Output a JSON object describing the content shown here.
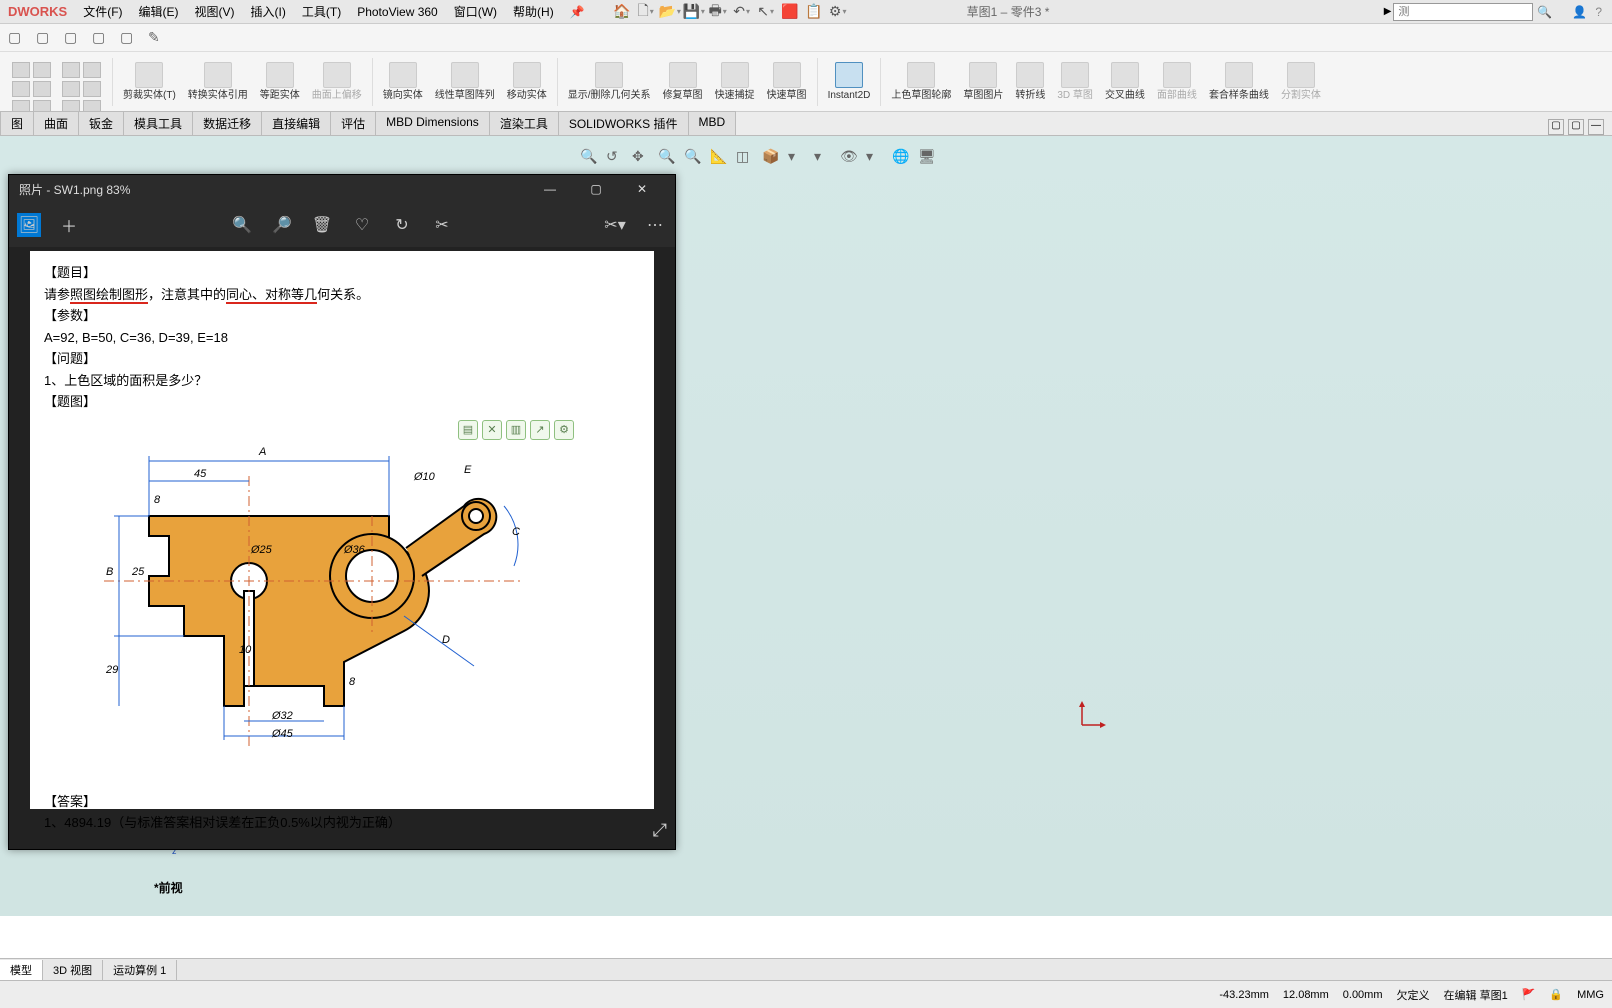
{
  "app": {
    "logo": "DWORKS"
  },
  "menu": [
    "文件(F)",
    "编辑(E)",
    "视图(V)",
    "插入(I)",
    "工具(T)",
    "PhotoView 360",
    "窗口(W)",
    "帮助(H)"
  ],
  "doc_title": "草图1 – 零件3 *",
  "search": {
    "icon": "▶",
    "placeholder": "测"
  },
  "ribbon": {
    "groups": [
      {
        "label": "剪裁实体(T)"
      },
      {
        "label": "转换实体引用"
      },
      {
        "label": "等距实体"
      },
      {
        "label": "曲面上偏移",
        "dim": true
      },
      {
        "label": "镜向实体"
      },
      {
        "label": "线性草图阵列"
      },
      {
        "label": "移动实体"
      },
      {
        "label": "显示/删除几何关系"
      },
      {
        "label": "修复草图"
      },
      {
        "label": "快速捕捉"
      },
      {
        "label": "快速草图"
      },
      {
        "label": "Instant2D",
        "active": true
      },
      {
        "label": "上色草图轮廓"
      },
      {
        "label": "草图图片"
      },
      {
        "label": "转折线"
      },
      {
        "label": "3D 草图",
        "dim": true
      },
      {
        "label": "交叉曲线"
      },
      {
        "label": "面部曲线",
        "dim": true
      },
      {
        "label": "套合样条曲线"
      },
      {
        "label": "分割实体",
        "dim": true
      }
    ]
  },
  "tabs": [
    "图",
    "曲面",
    "钣金",
    "模具工具",
    "数据迁移",
    "直接编辑",
    "评估",
    "MBD Dimensions",
    "渲染工具",
    "SOLIDWORKS 插件",
    "MBD"
  ],
  "viewport": {
    "front_label": "*前视"
  },
  "photo_viewer": {
    "title": "照片 - SW1.png   83%",
    "problem": {
      "line0_label": "【题目】",
      "line1_a": "请参",
      "line1_b": "照图绘制图形",
      "line1_c": "，注意其中的",
      "line1_d": "同心、对称等几",
      "line1_e": "何关系。",
      "params_label": "【参数】",
      "params": "A=92,   B=50,   C=36,   D=39,   E=18",
      "question_label": "【问题】",
      "question": "1、上色区域的面积是多少？",
      "fig_label": "【题图】",
      "answer_label": "【答案】",
      "answer": "1、4894.19（与标准答案相对误差在正负0.5%以内视为正确）"
    },
    "dims": {
      "A": "A",
      "B": "B",
      "C": "C",
      "D": "D",
      "E": "E",
      "d45": "45",
      "d8": "8",
      "d25": "25",
      "d29": "29",
      "d10": "10",
      "d_8": "8",
      "phi10": "Ø10",
      "phi25": "Ø25",
      "phi36": "Ø36",
      "phi32": "Ø32",
      "phi45": "Ø45"
    },
    "colors": {
      "fill": "#e8a23c",
      "stroke": "#000",
      "dimline": "#2060d0",
      "underline": "#d9261c",
      "centerline": "#d06030"
    }
  },
  "bottom_tabs": [
    "模型",
    "3D 视图",
    "运动算例 1"
  ],
  "status": {
    "x": "-43.23mm",
    "y": "12.08mm",
    "z": "0.00mm",
    "def": "欠定义",
    "edit": "在编辑 草图1",
    "unit": "MMG"
  }
}
